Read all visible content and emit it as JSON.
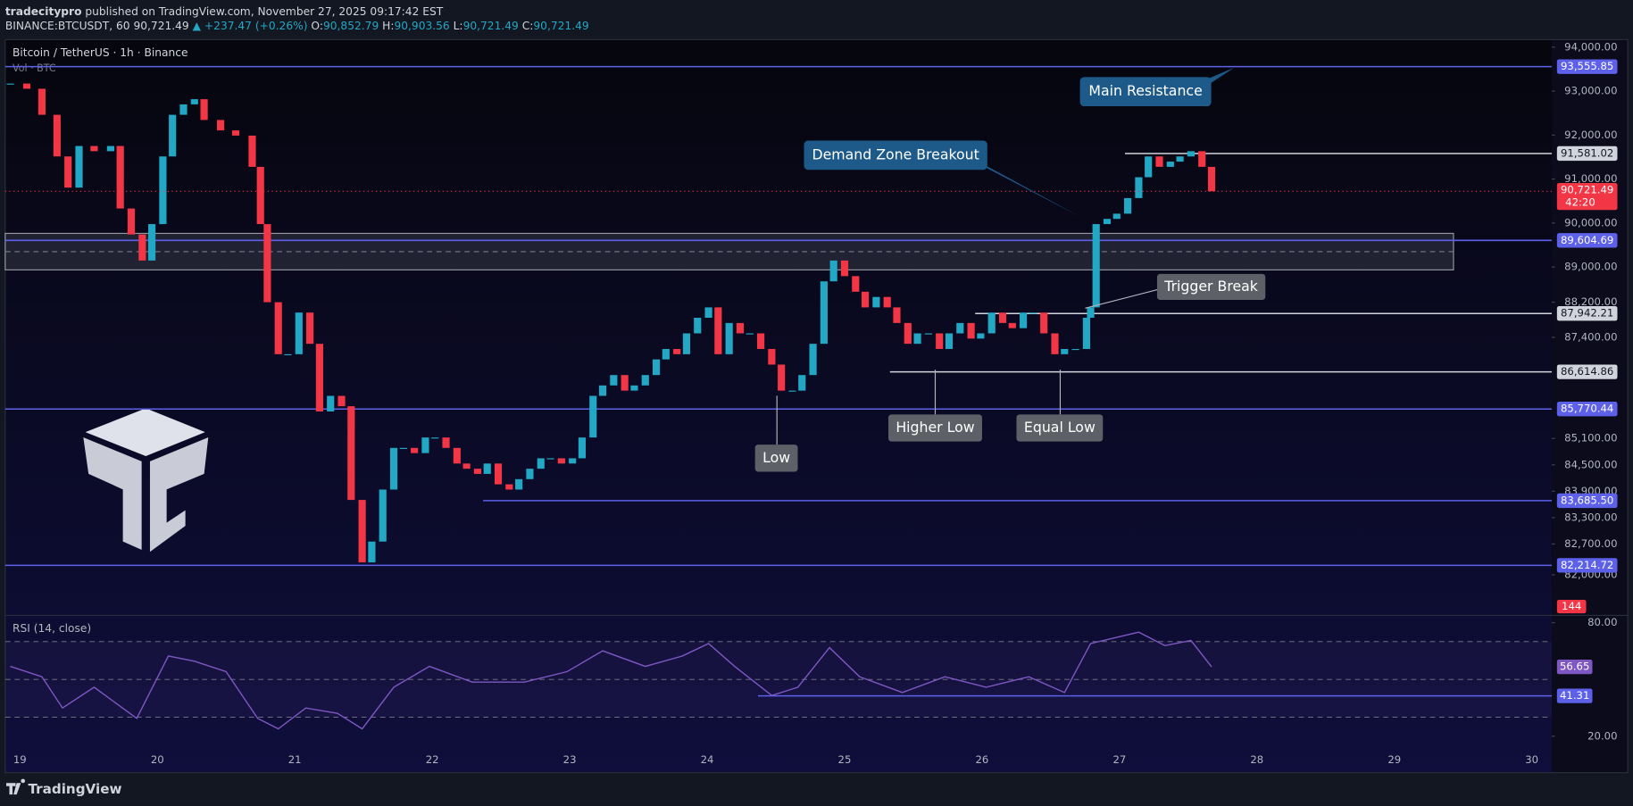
{
  "header": {
    "author": "tradecitypro",
    "published": " published on TradingView.com, November 27, 2025 09:17:42 EST",
    "symbol": "BINANCE:BTCUSDT, 60",
    "price": "90,721.49",
    "change": "▲ +237.47 (+0.26%)",
    "ohlc": [
      {
        "k": "O:",
        "v": "90,852.79"
      },
      {
        "k": "H:",
        "v": "90,903.56"
      },
      {
        "k": "L:",
        "v": "90,721.49"
      },
      {
        "k": "C:",
        "v": "90,721.49"
      }
    ]
  },
  "chart_data": {
    "type": "candlestick",
    "title": "Bitcoin / TetherUS · 1h · Binance",
    "volume_label": "Vol · BTC",
    "x": [
      18.93,
      19.05,
      19.16,
      19.27,
      19.35,
      19.43,
      19.54,
      19.66,
      19.73,
      19.81,
      19.89,
      19.96,
      20.04,
      20.11,
      20.19,
      20.27,
      20.34,
      20.46,
      20.57,
      20.69,
      20.75,
      20.8,
      20.88,
      20.95,
      21.03,
      21.11,
      21.18,
      21.26,
      21.34,
      21.41,
      21.49,
      21.56,
      21.64,
      21.72,
      21.79,
      21.87,
      21.95,
      22.02,
      22.1,
      22.18,
      22.25,
      22.33,
      22.4,
      22.48,
      22.56,
      22.63,
      22.71,
      22.79,
      22.86,
      22.94,
      23.02,
      23.09,
      23.17,
      23.24,
      23.32,
      23.4,
      23.47,
      23.55,
      23.63,
      23.7,
      23.78,
      23.85,
      23.93,
      24.01,
      24.08,
      24.16,
      24.24,
      24.31,
      24.39,
      24.47,
      24.54,
      24.62,
      24.69,
      24.77,
      24.85,
      24.92,
      25.0,
      25.08,
      25.15,
      25.23,
      25.31,
      25.38,
      25.46,
      25.53,
      25.61,
      25.69,
      25.76,
      25.84,
      25.92,
      25.99,
      26.07,
      26.15,
      26.22,
      26.3,
      26.37,
      26.45,
      26.53,
      26.6,
      26.68,
      26.76,
      26.79,
      26.83,
      26.91,
      26.98,
      27.06,
      27.14,
      27.21,
      27.29,
      27.37,
      27.44,
      27.52,
      27.6,
      27.67
    ],
    "values": [
      93171,
      93053,
      92461,
      91514,
      90804,
      91751,
      91633,
      91751,
      90330,
      89739,
      89147,
      89975,
      91514,
      92461,
      92698,
      92816,
      92343,
      92106,
      91988,
      91277,
      89975,
      88199,
      87016,
      87016,
      87963,
      87253,
      85714,
      86069,
      85833,
      83702,
      82281,
      82755,
      83938,
      84885,
      84885,
      84767,
      85122,
      85122,
      84885,
      84530,
      84412,
      84294,
      84530,
      84057,
      83938,
      84175,
      84412,
      84649,
      84649,
      84530,
      84649,
      85122,
      86069,
      86306,
      86542,
      86188,
      86306,
      86542,
      86898,
      87135,
      87016,
      87490,
      87845,
      88081,
      87016,
      87726,
      87490,
      87490,
      87135,
      86780,
      86188,
      86188,
      86542,
      87253,
      88673,
      89147,
      88792,
      88437,
      88081,
      88318,
      88081,
      87726,
      87253,
      87490,
      87490,
      87135,
      87490,
      87726,
      87371,
      87490,
      87963,
      87726,
      87608,
      87963,
      87963,
      87490,
      87016,
      87135,
      87135,
      87845,
      88081,
      89975,
      90094,
      90212,
      90567,
      91041,
      91514,
      91277,
      91396,
      91514,
      91633,
      91277,
      90721.49
    ],
    "xlim": [
      18.893,
      30.145
    ],
    "xticks": [
      19,
      20,
      21,
      22,
      23,
      24,
      25,
      26,
      27,
      28,
      29,
      30
    ],
    "ylim": [
      81100,
      94170
    ],
    "yticks": [
      {
        "value": 94000,
        "label": "94,000.00"
      },
      {
        "value": 93000,
        "label": "93,000.00"
      },
      {
        "value": 92000,
        "label": "92,000.00"
      },
      {
        "value": 91000,
        "label": "91,000.00"
      },
      {
        "value": 90000,
        "label": "90,000.00"
      },
      {
        "value": 89000,
        "label": "89,000.00"
      },
      {
        "value": 88200,
        "label": "88,200.00"
      },
      {
        "value": 87400,
        "label": "87,400.00"
      },
      {
        "value": 85100,
        "label": "85,100.00"
      },
      {
        "value": 84500,
        "label": "84,500.00"
      },
      {
        "value": 83900,
        "label": "83,900.00"
      },
      {
        "value": 83300,
        "label": "83,300.00"
      },
      {
        "value": 82700,
        "label": "82,700.00"
      },
      {
        "value": 82000,
        "label": "82,000.00"
      }
    ],
    "colors": {
      "up": "#22a7c4",
      "down": "#f23645"
    },
    "current": {
      "value": 90721.49,
      "label": "90,721.49",
      "countdown": "42:20"
    },
    "volume_last": 144,
    "zone": {
      "top": 89764,
      "bottom": 88934,
      "x_end": 29.43
    },
    "levels": [
      {
        "value": 93555.85,
        "label": "93,555.85",
        "color": "#5d60e8"
      },
      {
        "value": 91581.02,
        "label": "91,581.02",
        "color": "#d1d4dc",
        "from": 27.04
      },
      {
        "value": 89604.69,
        "label": "89,604.69",
        "color": "#5d60e8"
      },
      {
        "value": 87942.21,
        "label": "87,942.21",
        "color": "#d1d4dc",
        "from": 25.95
      },
      {
        "value": 86614.86,
        "label": "86,614.86",
        "color": "#d1d4dc",
        "from": 25.33
      },
      {
        "value": 85770.44,
        "label": "85,770.44",
        "color": "#5d60e8"
      },
      {
        "value": 83685.5,
        "label": "83,685.50",
        "color": "#5d60e8",
        "from": 22.37
      },
      {
        "value": 82214.72,
        "label": "82,214.72",
        "color": "#5d60e8"
      }
    ],
    "annotations": [
      "Main Resistance",
      "Demand Zone Breakout",
      "Trigger Break",
      "Higher Low",
      "Equal Low",
      "Low"
    ],
    "rsi": {
      "title": "RSI (14, close)",
      "x": [
        18.93,
        19.16,
        19.31,
        19.54,
        19.85,
        20.08,
        20.27,
        20.5,
        20.73,
        20.88,
        21.08,
        21.31,
        21.49,
        21.72,
        21.98,
        22.29,
        22.67,
        22.98,
        23.24,
        23.55,
        23.82,
        24.01,
        24.2,
        24.47,
        24.66,
        24.89,
        25.11,
        25.42,
        25.73,
        26.03,
        26.34,
        26.6,
        26.79,
        27.14,
        27.33,
        27.52,
        27.67
      ],
      "values": [
        56.9,
        51.4,
        34.9,
        45.9,
        29.4,
        62.4,
        59.6,
        54.1,
        29.4,
        23.9,
        34.9,
        32.1,
        23.9,
        45.9,
        56.9,
        48.6,
        48.6,
        54.1,
        65.1,
        56.9,
        62.4,
        69.0,
        56.9,
        41.5,
        45.9,
        66.8,
        51.4,
        43.1,
        51.4,
        45.9,
        51.4,
        43.1,
        69.0,
        75.0,
        67.9,
        70.6,
        56.65
      ],
      "color": "#7e57c2",
      "ylim": [
        0.75,
        83.3
      ],
      "yticks": [
        {
          "value": 80,
          "label": "80.00"
        },
        {
          "value": 20,
          "label": "20.00"
        }
      ],
      "guides": [
        70,
        50,
        30
      ],
      "levels": [
        {
          "value": 41.31,
          "label": "41.31",
          "color": "#5d60e8",
          "from": 24.37
        }
      ],
      "last_label": "56.65"
    }
  },
  "footer": {
    "brand": "TradingView"
  }
}
